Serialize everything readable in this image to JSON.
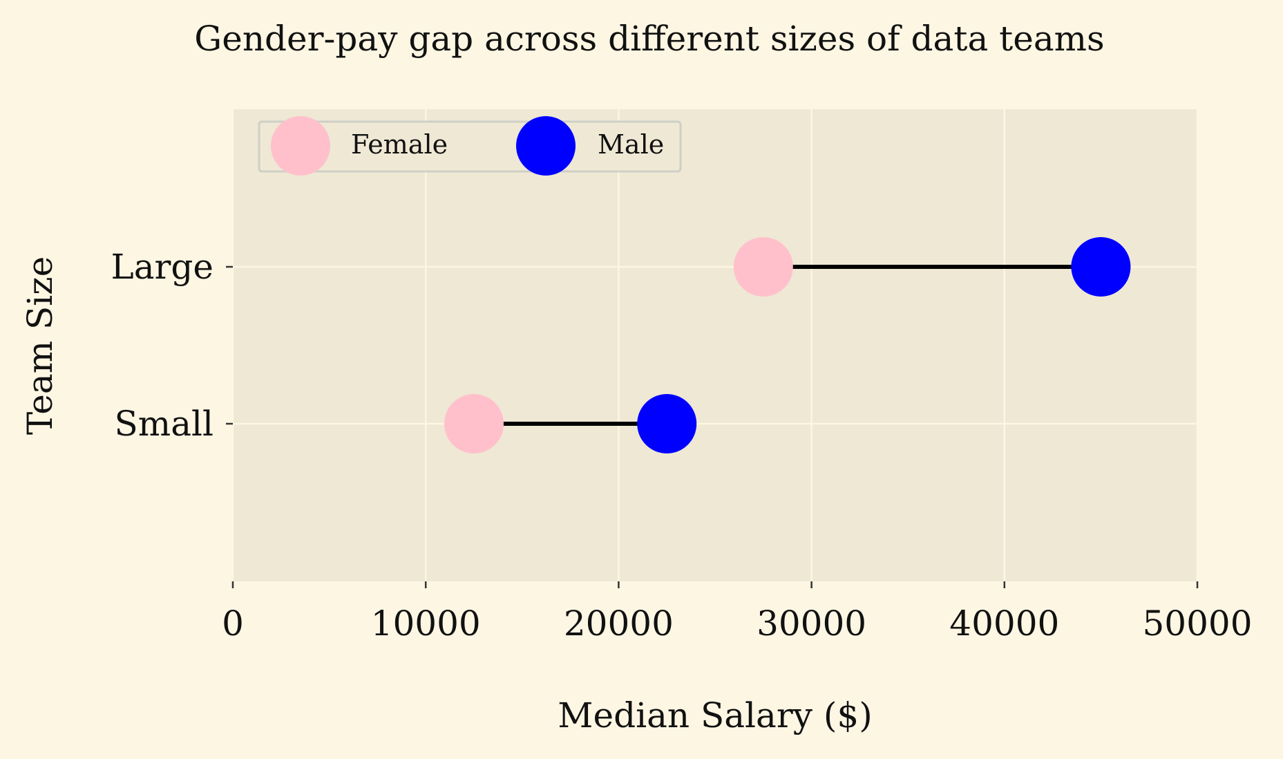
{
  "chart_data": {
    "type": "dumbbell",
    "title": "Gender-pay gap across different sizes of data teams",
    "xlabel": "Median Salary ($)",
    "ylabel": "Team Size",
    "xlim": [
      0,
      50000
    ],
    "x_ticks": [
      0,
      10000,
      20000,
      30000,
      40000,
      50000
    ],
    "x_tick_labels": [
      "0",
      "10000",
      "20000",
      "30000",
      "40000",
      "50000"
    ],
    "categories": [
      "Small",
      "Large"
    ],
    "series": [
      {
        "name": "Female",
        "color": "#ffc0cb",
        "values": [
          12500,
          27500
        ]
      },
      {
        "name": "Male",
        "color": "#0000ff",
        "values": [
          22500,
          45000
        ]
      }
    ],
    "connector_color": "#000000",
    "grid": true,
    "legend_position": "upper-left",
    "legend_columns": 2
  }
}
